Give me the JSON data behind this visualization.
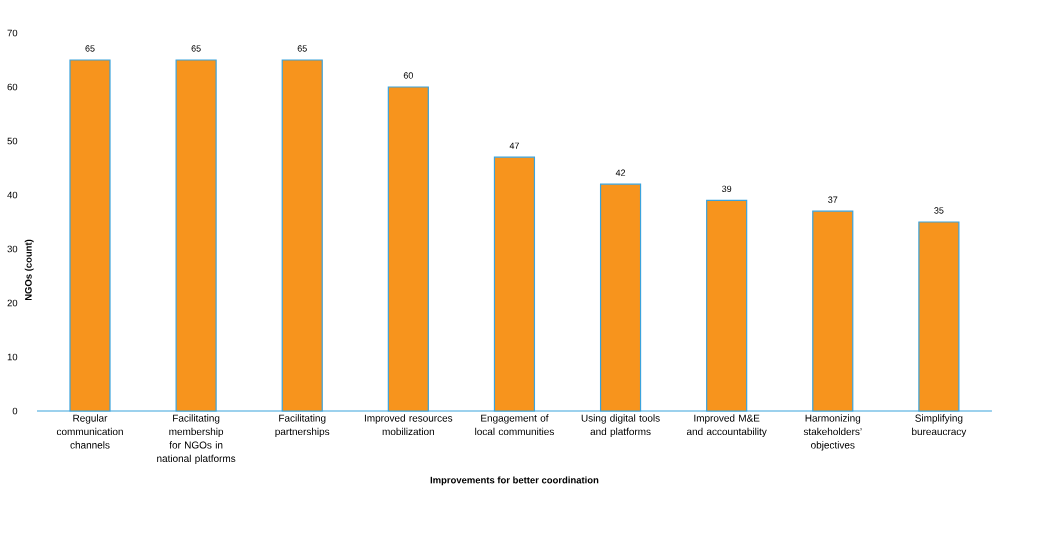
{
  "chart_data": {
    "type": "bar",
    "xlabel": "Improvements for better coordination",
    "ylabel": "NGOs (count)",
    "categories": [
      "Regular communication channels",
      "Facilitating membership for NGOs in national platforms",
      "Facilitating partnerships",
      "Improved resources mobilization",
      "Engagement of local communities",
      "Using digital tools and platforms",
      "Improved M&E and accountability",
      "Harmonizing stakeholders’ objectives",
      "Simplifying bureaucracy"
    ],
    "values": [
      65,
      65,
      65,
      60,
      47,
      42,
      39,
      37,
      35
    ],
    "color": "#f7941d",
    "ylim": [
      0,
      70
    ],
    "yticks": [
      0,
      10,
      20,
      30,
      40,
      50,
      60,
      70
    ],
    "data_labels": true
  }
}
